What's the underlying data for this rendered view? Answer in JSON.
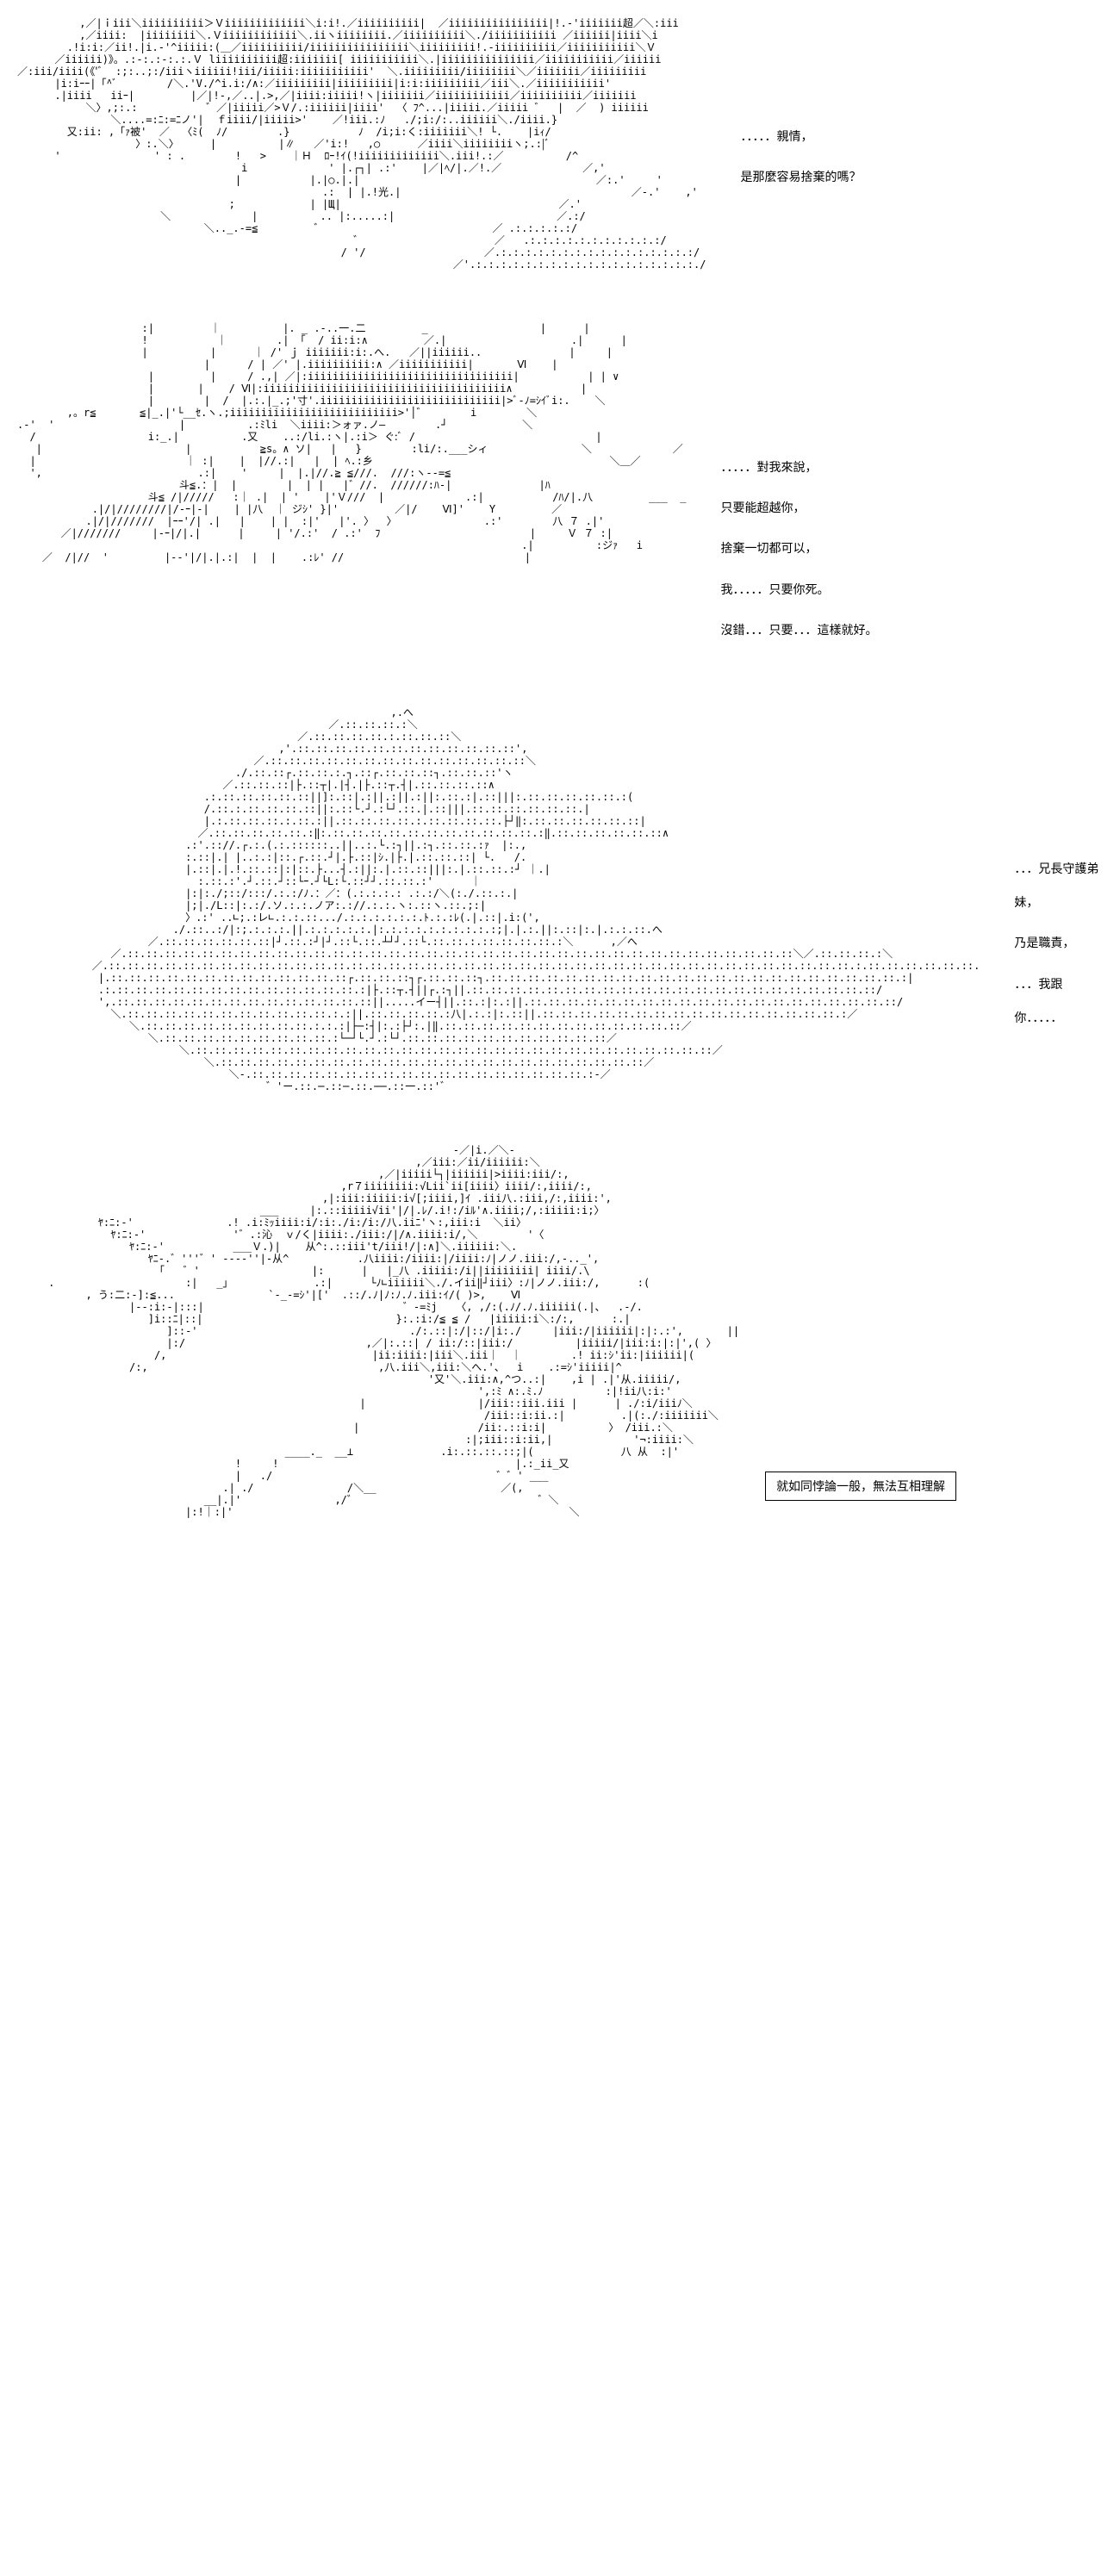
{
  "panels": [
    {
      "ascii": "          ,／|ｉiii＼iiiiiiiiii＞Ｖiiiiiiiiiiiii＼i:i!.／iiiiiiiiii|  ／iiiiiiiiiiiiiiii|!.-'iiiiiii超／＼:iii\n          ,／iiii:  |iiiiiiii＼.Ｖiiiiiiiiiiii＼.iiヽiiiiiiii.／iiiiiiiiii＼./iiiiiiiiiii ／iiiiii|iiii＼i\n        .!i:i:／ii!.|i.-'^iiiii:(＿／iiiiiiiiii/iiiiiiiiiiiiiiii＼iiiiiiiii!.-iiiiiiiiii／iiiiiiiiiii＼Ｖ\n      ／iiiiii)》。.:-:.:-:.:.Ｖ liiiiiiiiii超:iiiiiii[ iiiiiiiiiii＼.|iiiiiiiiiiiiiii／iiiiiiiiiii／iiiiii\n／:iii/iiii(《'ﾞ  :;:..;:/iiiヽiiiiii!iii/iiiii:iiiiiiiiiii'  ＼.iiiiiiiii/iiiiiiii＼／iiiiiii／iiiiiiiii\n      |i:iｰｰ|「^ﾞ        /＼.'V./^i.i:/∧:／iiiiiiiii|iiiiiiiii|i:i:iiiiiiiii／iii＼.／iiiiiiiiiii'\n      .|iiii   iiｰ|         |／|!-,／..|.>,／|iiii:iiiii!ヽ|iiiiiii／iiiiiiiiiiii／iiiiiiiiii／iiiiiii\n           ＼〉,;:.:           ゛／|iiiii／>Ｖ/.:iiiiii|iiii'  〈 ﾌ^...|iiiii.／iiiii ゛  |  ／  ) iiiiii\n               ＼....=:ﾆ:=ﾆノ'|  ｆiiii/|iiiii>'    ／!iii.:ﾉ   ./;i:/:..iiiiii＼./iiii.}\n        又:ii: ,「ｧ被'  ／  〈ﾐ(  ﾉ/        .}           ﾉ  /i;i:く:iiiiiii＼! └.    |iｨ/\n                   〉:.＼〉     |          |∥   ／'i:!   ,○      ／iiii＼iiiiiiiiヽ;.:|ﾞ\n      '               ' : .        !   >    ｜Ｈ  ﾛｰ!ｲ(!iiiiiiiiiiiii＼.iii!.:／          /^\n                                    i             ' |.┌┐| .:'    |／|ﾍ/|.／!.／             ／,'\n                                   |           |.|○.|.|                                      ／:.'     '\n                                                 .:  | |.!光.|                                     ／-.'    ,'\n                                  ;            | |Щ|                                   ／.'\n                       ＼             |          .. |:.....:|                          ／.:/\n                              ＼.._.-=≦         ゛                           ／ .:.:.:.:.:/\n                                                      ゛                     ／   .:.:.:.:.:.:.:.:.:.:.:/\n                                                    / '/                   ／.:.:.:.:.:.:.:.:.:.:.:.:.:.:.:.:/\n                                                                      ／'.:.:.:.:.:.:.:.:.:.:.:.:.:.:.:.:.:.:./",
      "dialogue_lines": [
        "．．．．．親情，",
        "是那麼容易捨棄的嗎？"
      ],
      "dialogue_margin_top": 120
    },
    {
      "ascii": "                    :|         ｜          |. _ .-..一.二         _                  |      |\n                    !           ｜        .| 「  / ii:i:∧         ／.|                    .|      |\n                    |          |      ｜ /' ｊ iiiiiii:i:.へ.   ／||iiiiii..              |     |\n                              |      / | ／' |.iiiiiiiiii:∧ ／iiiiiiiiiii|       Ⅵ    |\n                     |         |     / .,| ／|:iiiiiiiiiiiiiiiiiiiiiiiiiiiiiiiii|           | | ∨\n                     |       |    / Ⅵ|:iiiiiiiiiiiiiiiiiiiiiiiiiiiiiiiiiiiiiii∧           |\n                     |        |  /  |.:.|_.;'寸'.iiiiiiiiiiiiiiiiiiiiiiiiiiiii|>ﾞ-ﾉ=ｼｲﾞi:.    ＼\n        ,。r≦       ≦|_.|'└__ｾ.ヽ.;iiiiiiiiiiiiiiiiiiiiiiiiiii>'│゛       i        ＼\n.-'  '                    |          .:ﾐli  ＼iiii:＞ォァ.ノ―        .┘            ＼\n  /                  i:_.|          .又    ..:/li.:ヽ|.:i＞ ぐ:ﾞ /                             |\n   |                       |           ≧s。∧ ソ|   |   }        :li/:.___シィ               ＼             ／\n  |                        ｜ :|    |  |//.:|   |  | ﾍ.:乡                                      ＼＿／\n  ',                         .:|    '     |  |.|//.≧ ≦///.  ///:ヽ--=≦\n                          斗≦.：|  |        |  | |   |゛//.  //////:ﾊ-|              |ﾊ\n                     斗≦ /|/////   :｜ .|  | '    |'Ｖ///  |             .:|           /ﾊ/|.八         ___  _\n            .|/|////////|/-ｰ|-|    | |八  ｜ ジｼ' }|'         ／|/    Ⅵ]'    Y         ／\n           .|/|///////  |ｰｰ'/| .|   |    | |  :|'   |'. 〉  〉              .:'        八 ７ .|'\n       ／|///////     |-ｰ|/|.|      |     | '/.:'  / .:'  ﾌ                        |     Ｖ ７ :|\n                                                                                 .|          :ジｧ   i\n    ／  /|//  '         |--'|/|.|.:|  |  |    .:ﾚ' //                             |",
      "dialogue_lines": [
        "．．．．．對我來說，",
        "只要能超越你，",
        "捨棄一切都可以，",
        "我．．．．．只要你死。",
        "沒錯．．．只要．．．這樣就好。"
      ],
      "dialogue_margin_top": 150
    },
    {
      "ascii": "                                                            ,.へ\n                                                  ／.::.::.::.:＼\n                                             ／.::.::.::.::.:.::.::.::＼\n                                          ,'.::.::.::.::.::.::.::.::.::.::.::.::',\n                                      ／.::.::.::.::.::.::.::.::.::.::.::.::.::.::＼\n                                   ./.::.::┌.::.::.:.┐.::┌.::.::.::┐.::.::.::'ヽ\n                                 ／.::.::.::|├.::┬|.|┤.|├.::┬.┤|.::.::.::.::∧\n                              .:.::.::.::.::.::||]:.::|.:||.:||.:||:.::.:|.::|||:.::.::.::.::.::.:(\n                              /.::.:.::.::.::.::||:.::└.┘.:└┘.::.|.::|||.::.::.::.::.::.::.|\n                              |.:.::.::.::.:.::.:||.::.::.::.::.:.::.::.::.::.├┘‖:.::.::.::.::.::.::|\n                             ／.::.::.::.::.::.:‖:.::.::.::.::.::.::.::.::.::.::.::.:‖.::.::.::.::.::.::∧\n                           .:'.:://.┌.:.(.:.::::::..||..:.└.:┐||.:┐.::.::.:ｧ  |:.,\n                           :.::|.| |..:.:|::.┌.::.┘|.├.::|ｼ.|├.|.::.::.::| └.   /.\n                           |.::|.|.!.::.::|:|::.├...┤.:||:.|.::.::|||:.|.::.::.:┘ ｜.|\n                             :.::.:'.┘.::.┘::└ｰ.┘└L:└.::┘┘.::.::.:'      ｜\n                           |:|:./;::/:::/.:.:/ﾉ.：／：(.:.:.:.: .:.:/＼(:./.::.:.|\n                           |;|./L::|:.:/.ソ.:.:.ノア:.://.:.:.ヽ:.::ヽ.::.;:|\n                           〉.:' ..∟;.:レ∟.:.:.::.../.:.:.:.:.:.:.ﾄ.:.:ﾚ(.|.::|.i:(',\n                         ./.::..:/|:;.:.:.:.||.:.:.:.:.:.|:.:.:.:.:.:.:.:.:.:;|.|.:.||:.::|:.|.:.:.::.へ\n                     ／.::.::.::.::.::.::|┘.::.:┘|┘.::└.::.┴┘┘.::└.::.::.:.::.::.::.::.:＼      ,／へ\n               ／.::.::.::.::.::.::.::.::.::.::.::.::.::.::.::.::.::.::.::.::.::.::.::.::.::.::.::.::.::.::.::.::.::.::.::.::＼／.::.::.::.:＼\n            ／.::.::.::.::.::.::.::.::.::.::.::.::.::.::.::.::.::.::.::.::.::.::.::.::.::.::.::.::.::.::.::.::.::.::.::.::.::.::.::.::.:.::.::.::.::.::.::.\n             |.::.::.::.::.::.::.::.::.::.::.::.::.::┌.::.::.::┐┌.::.::.::┐.::.::.::.::.::.::.::.::.::.::.::.::.::.::.::.::.::.::.::.::.::.::.:|\n             .:.::.::.::.::.::.::.::.::.::.::.::.::.::.:|├.::┬.┤||┌.:┐||.::.::.::.::.::.::.::.::.::.::.::.::.::.::.::.::.::.::.::.::.::.::/\n             ',.::.::.::.::.::.::.::.::.::.::.::.::.::.::||.....イー┤||.::.:|:.:||.::.::.::.::.::.::.::.::.::.::.::.::.::.::.::.::.::.::.::.::/\n               ＼.::.::.::.::.::.::.::.::.::.::.::.:.:||.::.::.::.::.:八|.:.:|:.::||.::.::.::.::.::.::.::.::.::.::.::.::.::.::.::.::.:／\n                  ＼.::.::.::.::.::.::.::.::.::.:.:.:|├─:┤|:.:├┘:.|‖.::.::.::.::.::.::.::.::.::.::.::.::.::／\n                     ＼.::.::.::.::.::.::.::.::.::.:└─┘└.┘.:└┘.::.::.::.::.::.::.::.::.::.::.::／\n                          ＼.::.::.::.::.::.::.::.::.::.::.::.::.::.::.::.::.::.::.::.::.::.::.::.::.::.::.::.::／\n                              ＼.::.::.::.::.::.::.::.::.::.::.::.::.::.::.::.::.::.::.::.::.::.::.::／\n                                  ＼-.::.::.::.::.::.::.::.::.::.::.::.::.::.::.::.::.::.::.:-／\n                                        ゛'ー.::.─.::─.::.──.::一.::'゛",
      "dialogue_lines": [
        "．．．兄長守護弟妹，",
        "乃是職責，",
        "．．．我跟你．．．．．"
      ],
      "dialogue_margin_top": 170
    },
    {
      "ascii": "                                                                      -／|i.／＼-\n                                                                ,／iii:／ii/iiiiii:＼\n                                                          ,／|iiiii└┐|iiiiii|>iiii:iii/:,\n                                                    ,r７iiiiiiii:√Lii`ii[iiii〉iiii/:,iiii/:,\n                                                 ,|:iii:iiiii:i√[;iiii,]ｲ .iii八.:iii,/:,iiii:',\n                                       ___     |:.::iiiii√ii'|/|.ﾚ/.i!:/iﾙ'∧.iiii;/,:iiiii:i;〉\n             ﾔ:ﾆ:-'               .! .i:ﾐｯiiii:i/:i:./i:/i:/八.iiﾆ'ヽ:,iii:i  ＼ii〉\n               ﾔ:ﾆ:-'              '゛.:沁  ｖ/く|iiii:./iii:/|/∧.iiii:i/,＼        '〈\n                  ﾔ:ﾆ:-'           ___Ｖ.)|    从^:.::iii't/iii!/|:∧]＼.iiiiii:＼.\n                     ﾔﾆ-.゛'''゛' ----''|-从^           .八iiii:/iiii:|/iiii:ﾉ|ノノ.iii:/,-.._',\n                      「   ゛'                  |:      |   |_八 .iiiii:/i||iiiiiiii| iiii/.\\\n     .                     :|   _」             .:|      └ﾉ∟iiiiii＼./.イii‖┘iii〉:ﾉ|ノノ.iii:/,      :(\n           , う:二:-]:≦...               `-_-=ｼ'|['  .::/.ﾉ|ﾉ:ﾉ.ﾉ.iii:ｲ/( )>,    Ⅵ\n                  |--:i:-|:::|                                ゛-=ﾐj   〈, ,/:(.ﾉ/.ﾉ.iiiiii(.|、  .-/.\n                     ]i::ﾆ|::|                               }:.:i:∕≦ ≦ ∕   |iiiii:i＼:/:,      :.|\n                        ]::-'                                  ./:.::|:/|::/|i:./     |iii:/|iiiiii|:|:.:',       ||\n                        |:/                             ,／|:.::| / ii:/::|iii:/          |iiiii/|iii:i:|:|',( 〉\n                      /,                                 |ii:iiii:|iii＼.iii｜  ｜        .! ii:ｼ'ii:|iiiiii|(\n                  /:,                                     ,八.iii＼,iii:＼へ.'、  i    .:=ｼ'iiiii|^\n                                                                  '又'＼.iii:∧,^つ..:|    ,i | .|'从.iiiii/,\n                                                                          ',:ﾐ ∧:.ﾐ.ﾉ          :|!ii八:i:'\n                                                       |                  |/iii::iii.iii |      | ./:i/iiiﾉ＼\n                                                                           /iii::i:ii.:|         .|(:./:iiiiiii＼\n                                                      |                   /ii:.::i:i|          〉 /iii.:＼\n                                                                        :|;iii::i:ii,|             '¬:iiii:＼\n                                           ____._  __⊥              .i:.::.::.::;|(              八 从  :|'\n                                   !     !                                      |.:_ii_又\n                                   |   ./                                    ゛゛' ___\n                                 .| ./               /＼__                    ／(,\n                              __|.|'               ,/゛                             ゛＼\n                           |:!｜:|'                                                      ＼",
      "dialogue_lines": [],
      "dialogue_margin_top": 0,
      "boxed_text": "就如同悖論一般，無法互相理解"
    }
  ],
  "style": {
    "background_color": "#ffffff",
    "text_color": "#000000",
    "ascii_font_size": 12,
    "ascii_line_height": 14,
    "dialogue_font_size": 14,
    "box_border_color": "#000000"
  }
}
